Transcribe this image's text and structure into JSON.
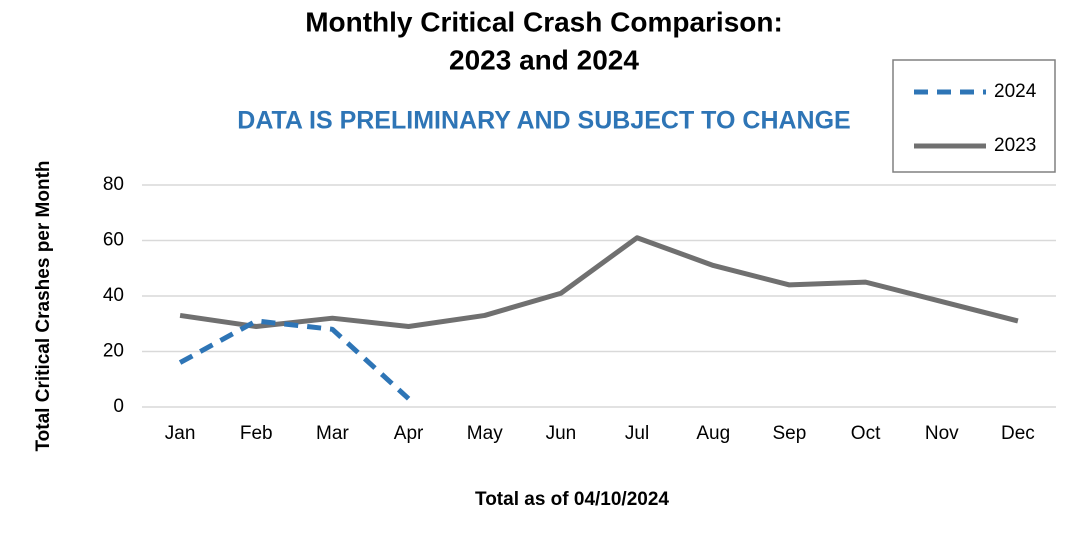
{
  "chart_data": {
    "type": "line",
    "title": [
      "Monthly Critical Crash Comparison:",
      "2023 and 2024"
    ],
    "subtitle": "DATA IS PRELIMINARY AND SUBJECT TO CHANGE",
    "y_label": "Total Critical Crashes per Month",
    "x_label": "Total as of 04/10/2024",
    "categories": [
      "Jan",
      "Feb",
      "Mar",
      "Apr",
      "May",
      "Jun",
      "Jul",
      "Aug",
      "Sep",
      "Oct",
      "Nov",
      "Dec"
    ],
    "series": [
      {
        "name": "2024",
        "color": "#2e75b6",
        "dashed": true,
        "values": [
          16,
          31,
          28,
          3,
          null,
          null,
          null,
          null,
          null,
          null,
          null,
          null
        ]
      },
      {
        "name": "2023",
        "color": "#707070",
        "dashed": false,
        "values": [
          33,
          29,
          32,
          29,
          33,
          41,
          61,
          51,
          44,
          45,
          38,
          31
        ]
      }
    ],
    "ylim": [
      0,
      80
    ],
    "yticks": [
      0,
      20,
      40,
      60,
      80
    ],
    "grid": true,
    "legend": "top-right"
  }
}
